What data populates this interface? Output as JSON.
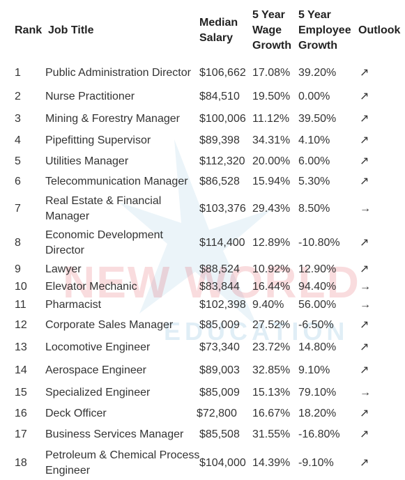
{
  "table": {
    "header": [
      "Rank",
      "Job Title",
      "Median Salary",
      "5 Year Wage Growth",
      "5 Year Employee Growth",
      "Outlook"
    ],
    "rows": [
      [
        "1",
        "Public Administration Director",
        "$106,662",
        "17.08%",
        "39.20%",
        "↗"
      ],
      [
        "2",
        "Nurse Practitioner",
        "$84,510",
        "19.50%",
        "0.00%",
        "↗"
      ],
      [
        "3",
        "Mining & Forestry Manager",
        "$100,006",
        "11.12%",
        "39.50%",
        "↗"
      ],
      [
        "4",
        "Pipefitting Supervisor",
        "$89,398",
        "34.31%",
        "4.10%",
        "↗"
      ],
      [
        "5",
        "Utilities Manager",
        "$112,320",
        "20.00%",
        "6.00%",
        "↗"
      ],
      [
        "6",
        "Telecommunication Manager",
        "$86,528",
        "15.94%",
        "5.30%",
        "↗"
      ],
      [
        "7",
        "Real Estate & Financial Manager",
        "$103,376",
        "29.43%",
        "8.50%",
        "→"
      ],
      [
        "8",
        "Economic Development Director",
        "$114,400",
        "12.89%",
        "-10.80%",
        "↗"
      ],
      [
        "9",
        "Lawyer",
        "$88,524",
        "10.92%",
        "12.90%",
        "↗"
      ],
      [
        "10",
        "Elevator Mechanic",
        "$83,844",
        "16.44%",
        "94.40%",
        "→"
      ],
      [
        "11",
        "Pharmacist",
        "$102,398",
        "9.40%",
        "56.00%",
        "→"
      ],
      [
        "12",
        "Corporate Sales Manager",
        "$85,009",
        "27.52%",
        "-6.50%",
        "↗"
      ],
      [
        "13",
        "Locomotive Engineer",
        "$73,340",
        "23.72%",
        "14.80%",
        "↗"
      ],
      [
        "14",
        "Aerospace Engineer",
        "$89,003",
        "32.85%",
        "9.10%",
        "↗"
      ],
      [
        "15",
        "Specialized Engineer",
        "$85,009",
        "15.13%",
        "79.10%",
        "→"
      ],
      [
        "16",
        "Deck Officer",
        "$72,800",
        "16.67%",
        "18.20%",
        "↗"
      ],
      [
        "17",
        "Business Services Manager",
        "$85,508",
        "31.55%",
        "-16.80%",
        "↗"
      ],
      [
        "18",
        "Petroleum & Chemical Process Engineer",
        "$104,000",
        "14.39%",
        "-9.10%",
        "↗"
      ]
    ]
  },
  "watermark": {
    "line1": "NEW WORLD",
    "line2": "EDUCATION"
  }
}
